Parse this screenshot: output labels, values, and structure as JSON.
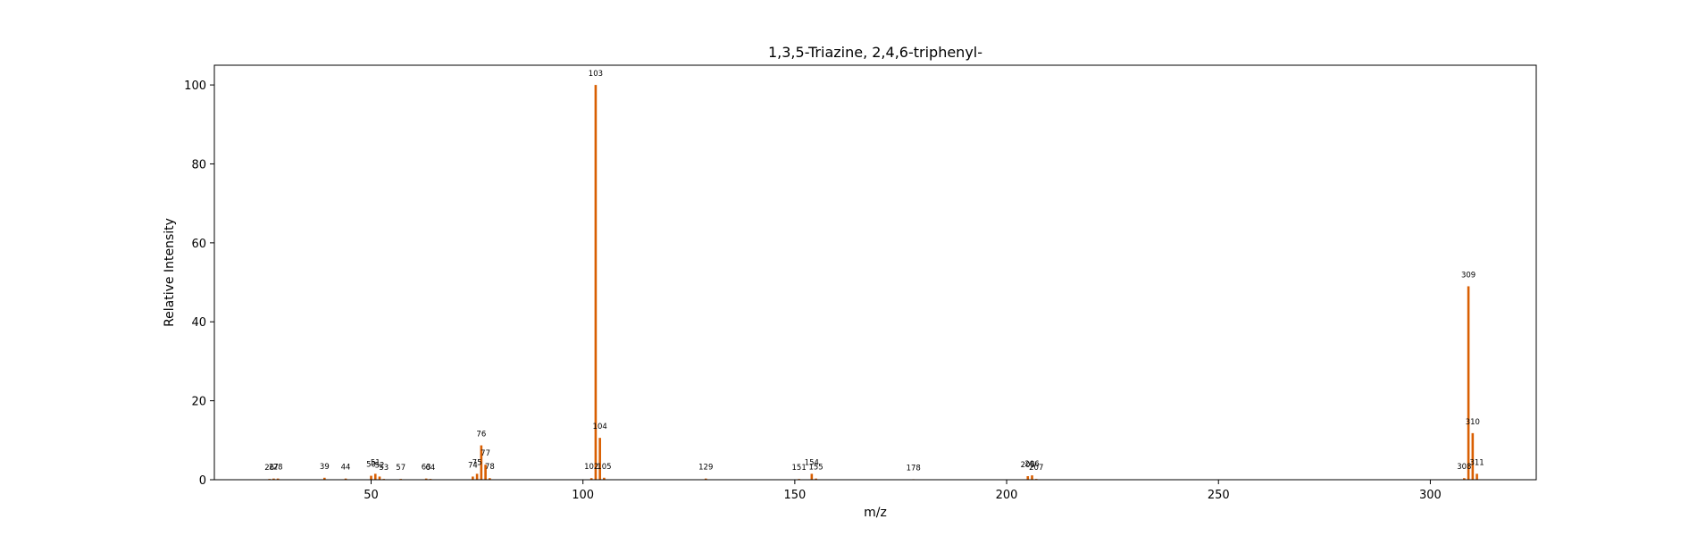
{
  "chart_data": {
    "type": "bar",
    "title": "1,3,5-Triazine, 2,4,6-triphenyl-",
    "xlabel": "m/z",
    "ylabel": "Relative Intensity",
    "xlim": [
      13,
      325
    ],
    "ylim": [
      0,
      105
    ],
    "xticks": [
      50,
      100,
      150,
      200,
      250,
      300
    ],
    "yticks": [
      0,
      20,
      40,
      60,
      80,
      100
    ],
    "bar_color": "#d95f02",
    "grid": false,
    "peaks": [
      {
        "mz": 26,
        "intensity": 0.2,
        "label": "26"
      },
      {
        "mz": 27,
        "intensity": 0.3,
        "label": "27"
      },
      {
        "mz": 28,
        "intensity": 0.3,
        "label": "28"
      },
      {
        "mz": 39,
        "intensity": 0.5,
        "label": "39"
      },
      {
        "mz": 44,
        "intensity": 0.3,
        "label": "44"
      },
      {
        "mz": 50,
        "intensity": 1.0,
        "label": "50"
      },
      {
        "mz": 51,
        "intensity": 1.5,
        "label": "51"
      },
      {
        "mz": 52,
        "intensity": 0.8,
        "label": "52"
      },
      {
        "mz": 53,
        "intensity": 0.2,
        "label": "53"
      },
      {
        "mz": 57,
        "intensity": 0.2,
        "label": "57"
      },
      {
        "mz": 63,
        "intensity": 0.3,
        "label": "63"
      },
      {
        "mz": 64,
        "intensity": 0.2,
        "label": "64"
      },
      {
        "mz": 74,
        "intensity": 0.8,
        "label": "74"
      },
      {
        "mz": 75,
        "intensity": 1.5,
        "label": "75"
      },
      {
        "mz": 76,
        "intensity": 8.7,
        "label": "76"
      },
      {
        "mz": 77,
        "intensity": 3.8,
        "label": "77"
      },
      {
        "mz": 78,
        "intensity": 0.4,
        "label": "78"
      },
      {
        "mz": 102,
        "intensity": 0.4,
        "label": "102"
      },
      {
        "mz": 103,
        "intensity": 100,
        "label": "103"
      },
      {
        "mz": 104,
        "intensity": 10.6,
        "label": "104"
      },
      {
        "mz": 105,
        "intensity": 0.5,
        "label": "105"
      },
      {
        "mz": 129,
        "intensity": 0.3,
        "label": "129"
      },
      {
        "mz": 151,
        "intensity": 0.2,
        "label": "151"
      },
      {
        "mz": 154,
        "intensity": 1.5,
        "label": "154"
      },
      {
        "mz": 155,
        "intensity": 0.3,
        "label": "155"
      },
      {
        "mz": 178,
        "intensity": 0.1,
        "label": "178"
      },
      {
        "mz": 205,
        "intensity": 0.9,
        "label": "205"
      },
      {
        "mz": 206,
        "intensity": 1.1,
        "label": "206"
      },
      {
        "mz": 207,
        "intensity": 0.2,
        "label": "207"
      },
      {
        "mz": 308,
        "intensity": 0.4,
        "label": "308"
      },
      {
        "mz": 309,
        "intensity": 49,
        "label": "309"
      },
      {
        "mz": 310,
        "intensity": 11.8,
        "label": "310"
      },
      {
        "mz": 311,
        "intensity": 1.5,
        "label": "311"
      }
    ]
  }
}
